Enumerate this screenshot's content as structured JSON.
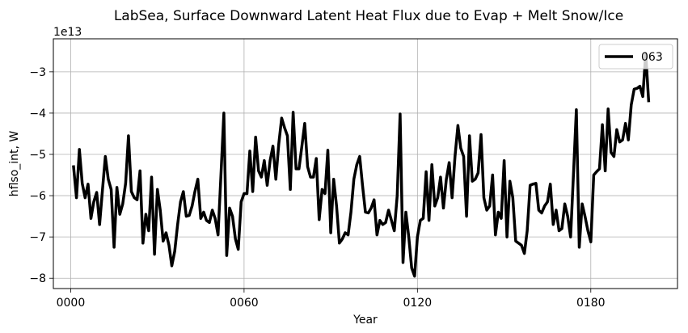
{
  "chart_data": {
    "type": "line",
    "title": "LabSea, Surface Downward Latent Heat Flux due to Evap + Melt Snow/Ice",
    "xlabel": "Year",
    "ylabel": "hflso_int, W",
    "offset_text": "1e13",
    "xlim": [
      -6,
      210
    ],
    "ylim": [
      -8.25,
      -2.2
    ],
    "grid": true,
    "legend_position": "top-right",
    "xticks": [
      0,
      60,
      120,
      180
    ],
    "xtick_labels": [
      "0000",
      "0060",
      "0120",
      "0180"
    ],
    "yticks": [
      -8,
      -7,
      -6,
      -5,
      -4,
      -3
    ],
    "ytick_labels": [
      "−8",
      "−7",
      "−6",
      "−5",
      "−4",
      "−3"
    ],
    "series": [
      {
        "name": "063",
        "color": "#000000",
        "x": [
          1,
          2,
          3,
          4,
          5,
          6,
          7,
          8,
          9,
          10,
          11,
          12,
          13,
          14,
          15,
          16,
          17,
          18,
          19,
          20,
          21,
          22,
          23,
          24,
          25,
          26,
          27,
          28,
          29,
          30,
          31,
          32,
          33,
          34,
          35,
          36,
          37,
          38,
          39,
          40,
          41,
          42,
          43,
          44,
          45,
          46,
          47,
          48,
          49,
          50,
          51,
          52,
          53,
          54,
          55,
          56,
          57,
          58,
          59,
          60,
          61,
          62,
          63,
          64,
          65,
          66,
          67,
          68,
          69,
          70,
          71,
          72,
          73,
          74,
          75,
          76,
          77,
          78,
          79,
          80,
          81,
          82,
          83,
          84,
          85,
          86,
          87,
          88,
          89,
          90,
          91,
          92,
          93,
          94,
          95,
          96,
          97,
          98,
          99,
          100,
          101,
          102,
          103,
          104,
          105,
          106,
          107,
          108,
          109,
          110,
          111,
          112,
          113,
          114,
          115,
          116,
          117,
          118,
          119,
          120,
          121,
          122,
          123,
          124,
          125,
          126,
          127,
          128,
          129,
          130,
          131,
          132,
          133,
          134,
          135,
          136,
          137,
          138,
          139,
          140,
          141,
          142,
          143,
          144,
          145,
          146,
          147,
          148,
          149,
          150,
          151,
          152,
          153,
          154,
          155,
          156,
          157,
          158,
          159,
          160,
          161,
          162,
          163,
          164,
          165,
          166,
          167,
          168,
          169,
          170,
          171,
          172,
          173,
          174,
          175,
          176,
          177,
          178,
          179,
          180,
          181,
          182,
          183,
          184,
          185,
          186,
          187,
          188,
          189,
          190,
          191,
          192,
          193,
          194,
          195,
          196,
          197,
          198,
          199,
          200
        ],
        "values": [
          -5.3,
          -6.05,
          -4.88,
          -5.7,
          -6.05,
          -5.72,
          -6.55,
          -6.15,
          -5.92,
          -6.7,
          -5.85,
          -5.05,
          -5.6,
          -5.85,
          -7.25,
          -5.8,
          -6.45,
          -6.2,
          -5.7,
          -4.55,
          -5.9,
          -6.05,
          -6.1,
          -5.4,
          -7.15,
          -6.45,
          -6.85,
          -5.55,
          -7.42,
          -5.85,
          -6.35,
          -7.1,
          -6.9,
          -7.2,
          -7.7,
          -7.35,
          -6.7,
          -6.15,
          -5.9,
          -6.5,
          -6.48,
          -6.25,
          -5.9,
          -5.6,
          -6.55,
          -6.4,
          -6.6,
          -6.65,
          -6.35,
          -6.55,
          -6.95,
          -5.5,
          -4.0,
          -7.45,
          -6.3,
          -6.5,
          -7.05,
          -7.3,
          -6.15,
          -5.95,
          -5.95,
          -4.92,
          -5.9,
          -4.58,
          -5.4,
          -5.55,
          -5.15,
          -5.75,
          -5.15,
          -4.8,
          -5.6,
          -4.75,
          -4.12,
          -4.35,
          -4.55,
          -5.85,
          -3.98,
          -5.35,
          -5.35,
          -4.8,
          -4.25,
          -5.3,
          -5.55,
          -5.55,
          -5.1,
          -6.58,
          -5.85,
          -5.95,
          -4.9,
          -6.9,
          -5.6,
          -6.25,
          -7.15,
          -7.05,
          -6.9,
          -6.95,
          -6.4,
          -5.6,
          -5.25,
          -5.05,
          -5.75,
          -6.4,
          -6.42,
          -6.3,
          -6.1,
          -6.95,
          -6.6,
          -6.7,
          -6.65,
          -6.35,
          -6.6,
          -6.85,
          -6.0,
          -4.02,
          -7.62,
          -6.4,
          -7.0,
          -7.75,
          -7.95,
          -7.0,
          -6.6,
          -6.55,
          -5.42,
          -6.6,
          -5.25,
          -6.25,
          -6.05,
          -5.55,
          -6.3,
          -5.6,
          -5.2,
          -6.05,
          -5.05,
          -4.3,
          -4.85,
          -5.05,
          -6.5,
          -4.55,
          -5.65,
          -5.6,
          -5.45,
          -4.52,
          -6.05,
          -6.35,
          -6.25,
          -5.5,
          -6.95,
          -6.4,
          -6.55,
          -5.15,
          -7.0,
          -5.65,
          -6.05,
          -7.1,
          -7.15,
          -7.2,
          -7.4,
          -6.85,
          -5.75,
          -5.72,
          -5.7,
          -6.35,
          -6.42,
          -6.25,
          -6.15,
          -5.72,
          -6.7,
          -6.35,
          -6.85,
          -6.8,
          -6.2,
          -6.5,
          -7.0,
          -5.5,
          -3.92,
          -7.25,
          -6.2,
          -6.5,
          -6.85,
          -7.12,
          -5.5,
          -5.42,
          -5.35,
          -4.28,
          -5.4,
          -3.9,
          -4.95,
          -5.05,
          -4.4,
          -4.7,
          -4.65,
          -4.25,
          -4.65,
          -3.8,
          -3.42,
          -3.4,
          -3.35,
          -3.6,
          -2.55,
          -3.7
        ]
      }
    ]
  }
}
